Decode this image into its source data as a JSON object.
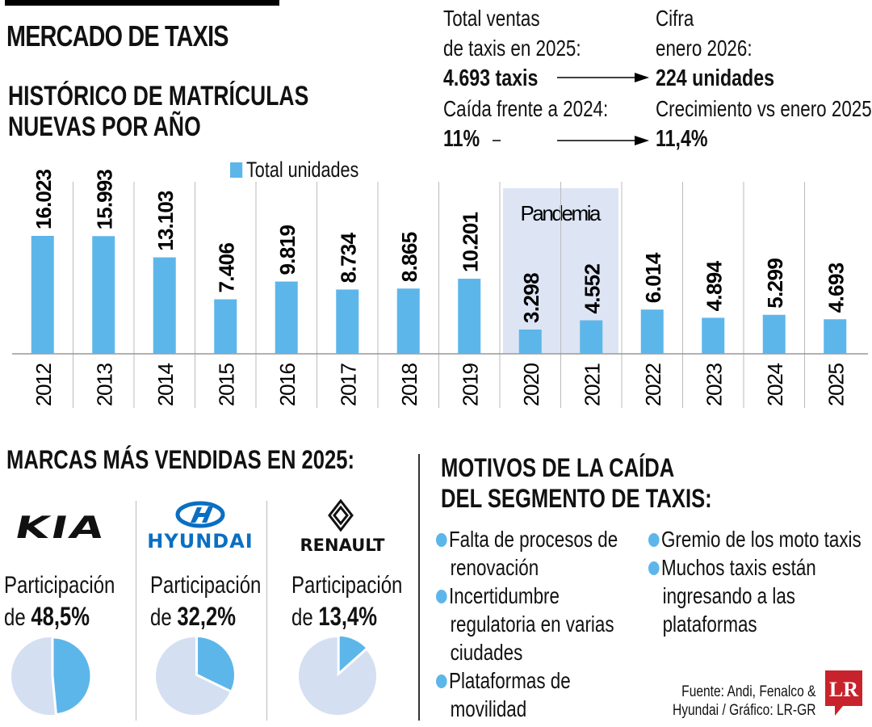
{
  "header": {
    "title": "MERCADO DE TAXIS",
    "chart_title_line1": "HISTÓRICO DE MATRÍCULAS",
    "chart_title_line2": "NUEVAS POR AÑO"
  },
  "stats": {
    "left": {
      "line1": "Total ventas",
      "line2": "de taxis en 2025:",
      "value1": "4.693 taxis",
      "line3": "Caída frente a 2024:",
      "value2": "11%"
    },
    "right": {
      "line1": "Cifra",
      "line2": "enero 2026:",
      "value1": "224 unidades",
      "line3": "Crecimiento vs enero 2025:",
      "value2": "11,4%"
    }
  },
  "chart_data": {
    "type": "bar",
    "categories": [
      "2012",
      "2013",
      "2014",
      "2015",
      "2016",
      "2017",
      "2018",
      "2019",
      "2020",
      "2021",
      "2022",
      "2023",
      "2024",
      "2025"
    ],
    "values": [
      16023,
      15993,
      13103,
      7406,
      9819,
      8734,
      8865,
      10201,
      3298,
      4552,
      6014,
      4894,
      5299,
      4693
    ],
    "labels": [
      "16.023",
      "15.993",
      "13.103",
      "7.406",
      "9.819",
      "8.734",
      "8.865",
      "10.201",
      "3.298",
      "4.552",
      "6.014",
      "4.894",
      "5.299",
      "4.693"
    ],
    "series": [
      {
        "name": "Total unidades",
        "color": "#5db6ea"
      }
    ],
    "annotation": {
      "text": "Pandemia",
      "years": [
        "2020",
        "2021"
      ],
      "color": "#dde5f5"
    },
    "legend": "top"
  },
  "brands": {
    "title": "MARCAS MÁS VENDIDAS EN 2025:",
    "items": [
      {
        "name": "KIA",
        "label": "Participación",
        "prefix": "de",
        "value": "48,5%",
        "share": 48.5
      },
      {
        "name": "HYUNDAI",
        "label": "Participación",
        "prefix": "de",
        "value": "32,2%",
        "share": 32.2
      },
      {
        "name": "RENAULT",
        "label": "Participación",
        "prefix": "de",
        "value": "13,4%",
        "share": 13.4
      }
    ],
    "colors": {
      "share": "#5db6ea",
      "rest": "#d5dff2",
      "hyundai": "#0a6fc2"
    }
  },
  "motives": {
    "title_line1": "MOTIVOS DE LA CAÍDA",
    "title_line2": "DEL SEGMENTO DE TAXIS:",
    "col1": [
      [
        "Falta de procesos de",
        "renovación"
      ],
      [
        "Incertidumbre",
        "regulatoria en varias",
        "ciudades"
      ],
      [
        "Plataformas de",
        "movilidad"
      ]
    ],
    "col2": [
      [
        "Gremio de los moto taxis"
      ],
      [
        "Muchos taxis están",
        "ingresando a las",
        "plataformas"
      ]
    ]
  },
  "source": {
    "line1": "Fuente: Andi, Fenalco &",
    "line2": "Hyundai / Gráfico: LR-GR",
    "logo": "LR",
    "logo_color": "#c8232c"
  }
}
